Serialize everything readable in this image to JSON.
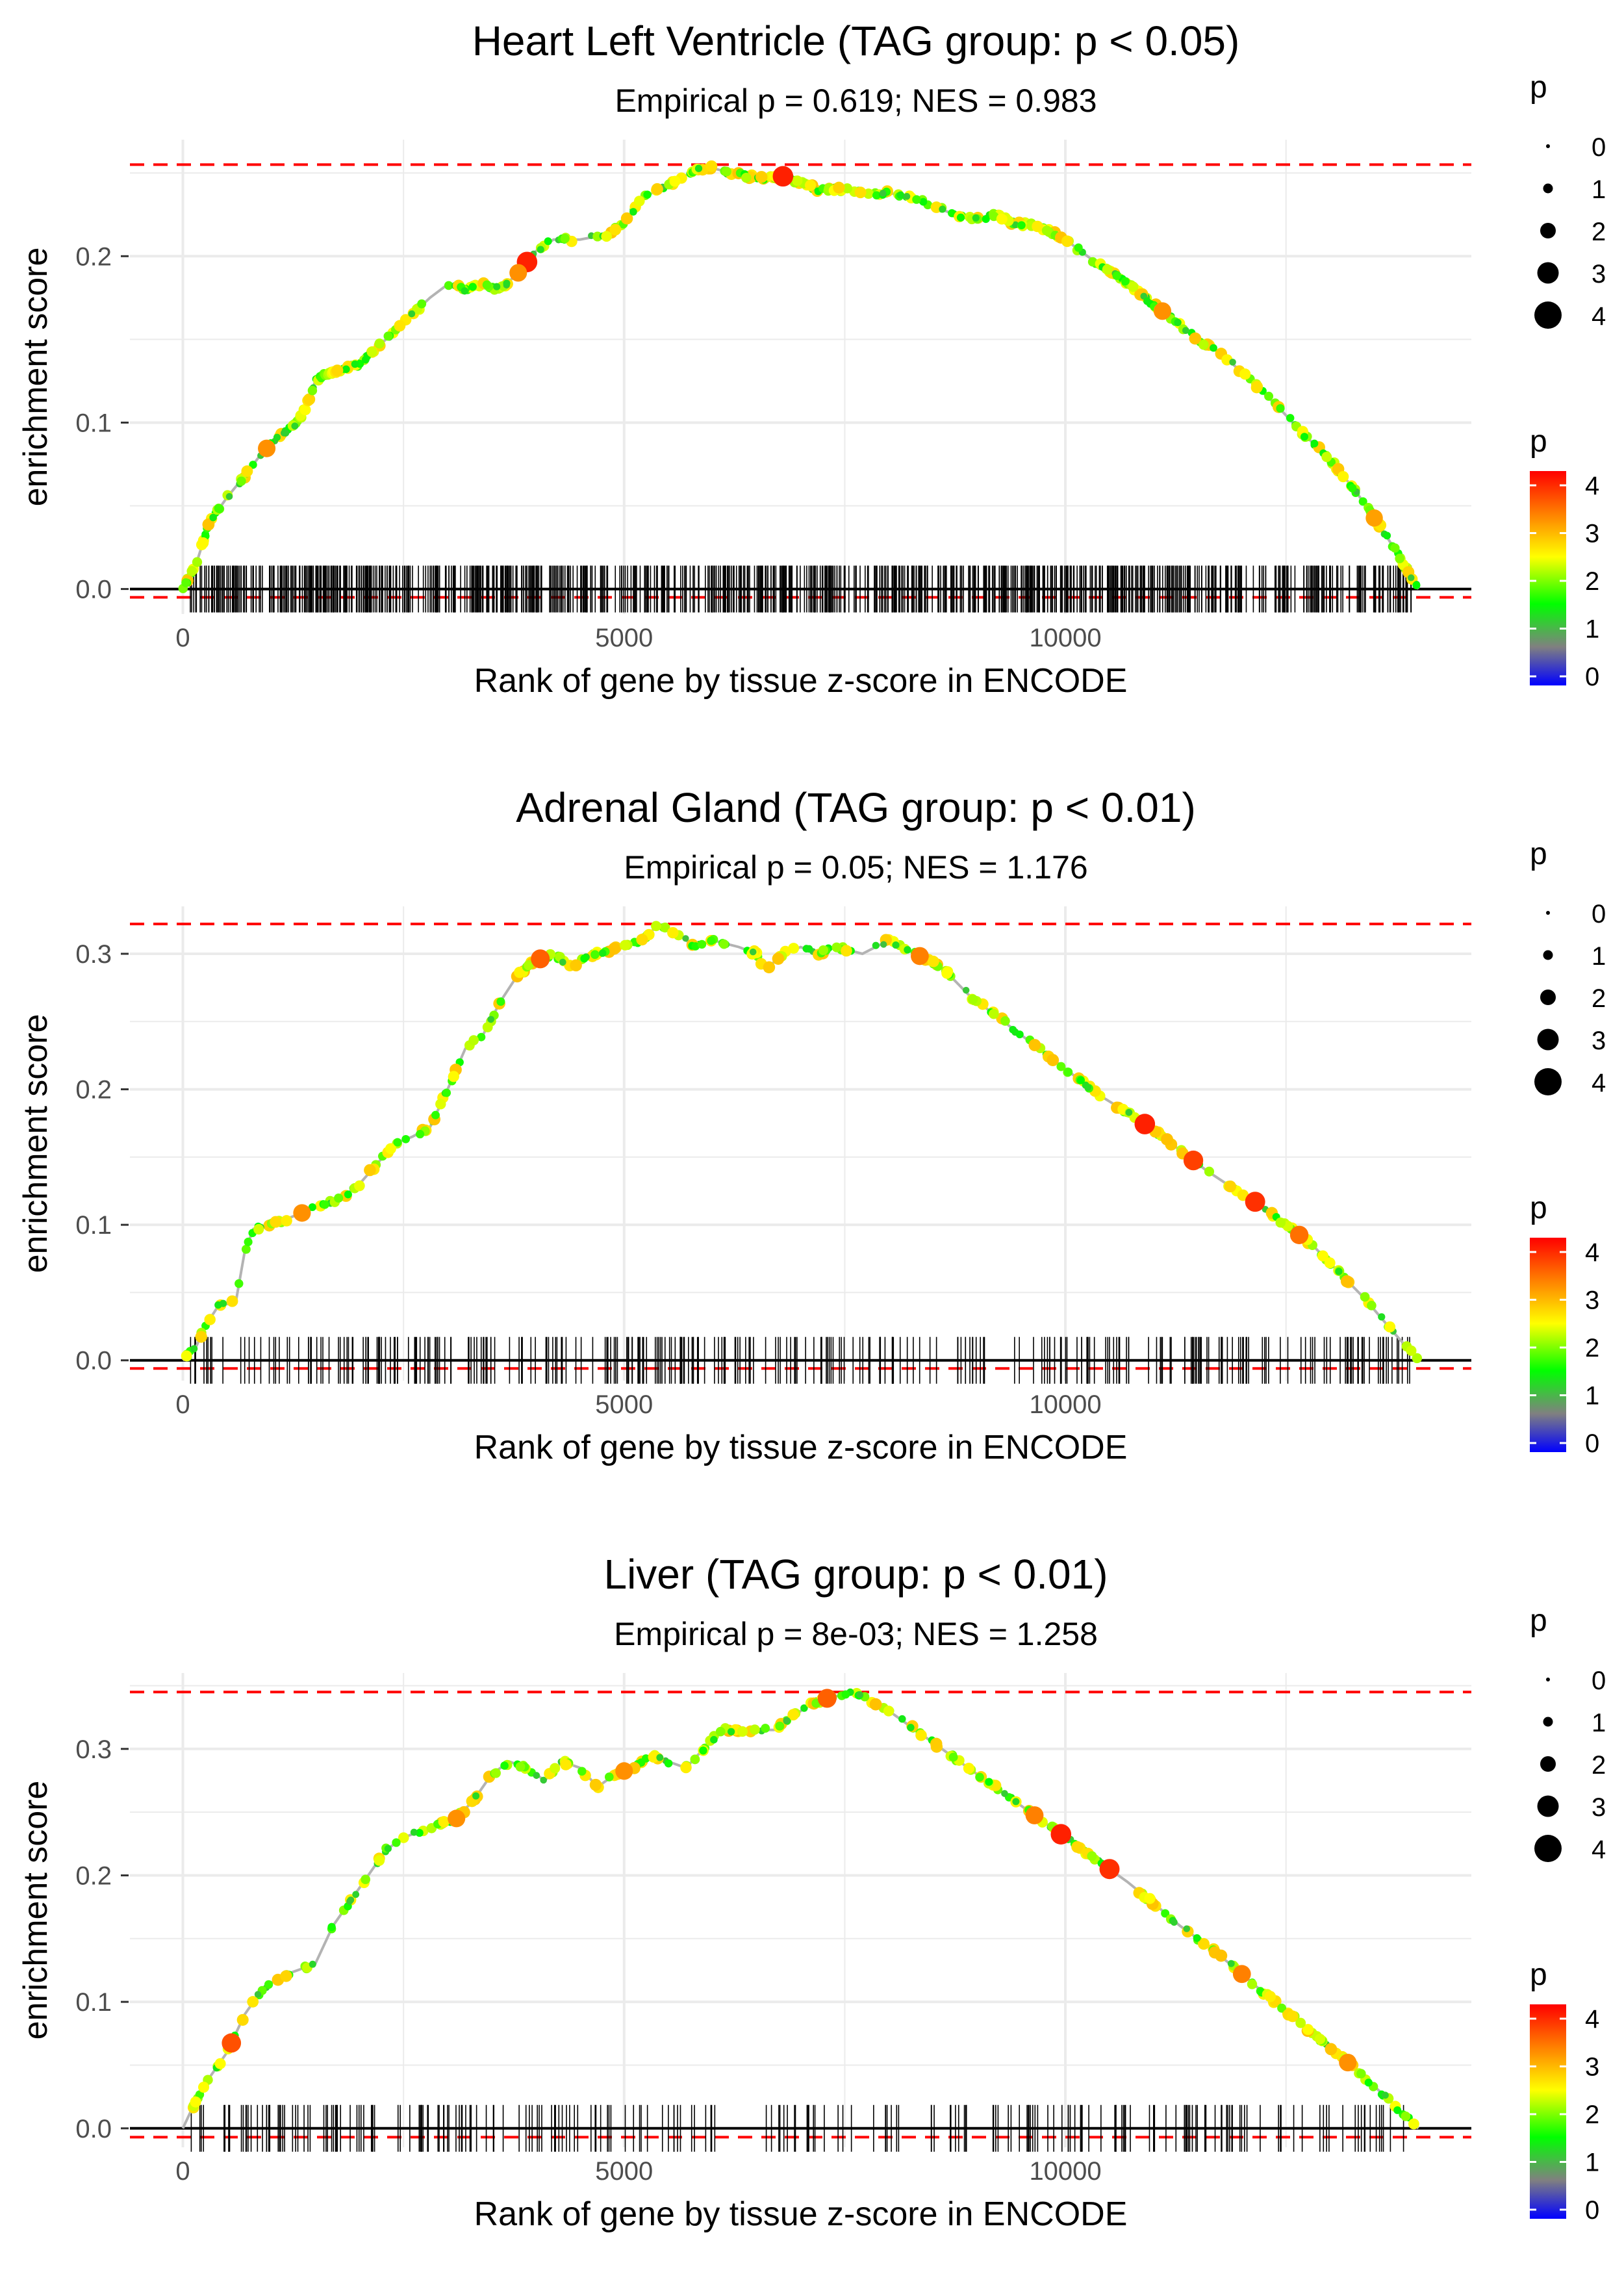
{
  "chart_data": [
    {
      "type": "line",
      "title": "Heart Left Ventricle (TAG group: p < 0.05)",
      "subtitle": "Empirical p = 0.619; NES = 0.983",
      "xlabel": "Rank of gene by tissue z-score in ENCODE",
      "ylabel": "enrichment score",
      "xlim": [
        -600,
        14600
      ],
      "ylim": [
        -0.015,
        0.27
      ],
      "x_ticks": [
        0,
        5000,
        10000
      ],
      "x_tick_labels": [
        "0",
        "5000",
        "10000"
      ],
      "y_ticks": [
        0.0,
        0.1,
        0.2
      ],
      "y_tick_labels": [
        "0.0",
        "0.1",
        "0.2"
      ],
      "max_es": 0.255,
      "min_es": -0.005,
      "n_genes": 14000,
      "grid": true,
      "curve": [
        [
          0,
          0
        ],
        [
          150,
          0.015
        ],
        [
          300,
          0.04
        ],
        [
          500,
          0.055
        ],
        [
          700,
          0.068
        ],
        [
          900,
          0.082
        ],
        [
          1100,
          0.092
        ],
        [
          1300,
          0.1
        ],
        [
          1400,
          0.11
        ],
        [
          1500,
          0.125
        ],
        [
          1650,
          0.13
        ],
        [
          1800,
          0.132
        ],
        [
          2000,
          0.135
        ],
        [
          2200,
          0.145
        ],
        [
          2400,
          0.155
        ],
        [
          2600,
          0.165
        ],
        [
          2800,
          0.175
        ],
        [
          3000,
          0.183
        ],
        [
          3200,
          0.18
        ],
        [
          3400,
          0.183
        ],
        [
          3600,
          0.18
        ],
        [
          3800,
          0.19
        ],
        [
          4000,
          0.203
        ],
        [
          4200,
          0.21
        ],
        [
          4500,
          0.21
        ],
        [
          4800,
          0.213
        ],
        [
          5000,
          0.22
        ],
        [
          5200,
          0.235
        ],
        [
          5400,
          0.24
        ],
        [
          5600,
          0.245
        ],
        [
          5800,
          0.252
        ],
        [
          6000,
          0.253
        ],
        [
          6200,
          0.25
        ],
        [
          6400,
          0.248
        ],
        [
          6600,
          0.247
        ],
        [
          6800,
          0.248
        ],
        [
          7000,
          0.244
        ],
        [
          7200,
          0.24
        ],
        [
          7500,
          0.24
        ],
        [
          7800,
          0.237
        ],
        [
          8000,
          0.238
        ],
        [
          8300,
          0.235
        ],
        [
          8500,
          0.23
        ],
        [
          8800,
          0.224
        ],
        [
          9000,
          0.222
        ],
        [
          9200,
          0.225
        ],
        [
          9400,
          0.22
        ],
        [
          9700,
          0.218
        ],
        [
          10000,
          0.21
        ],
        [
          10300,
          0.198
        ],
        [
          10600,
          0.188
        ],
        [
          10900,
          0.175
        ],
        [
          11200,
          0.163
        ],
        [
          11500,
          0.15
        ],
        [
          11800,
          0.14
        ],
        [
          12100,
          0.125
        ],
        [
          12400,
          0.11
        ],
        [
          12700,
          0.093
        ],
        [
          13000,
          0.078
        ],
        [
          13300,
          0.058
        ],
        [
          13600,
          0.035
        ],
        [
          13800,
          0.018
        ],
        [
          14000,
          0
        ]
      ],
      "highlight_points": [
        {
          "x": 950,
          "p": 3.3
        },
        {
          "x": 3900,
          "p": 4
        },
        {
          "x": 3800,
          "p": 3.3
        },
        {
          "x": 6800,
          "p": 4
        },
        {
          "x": 11100,
          "p": 3.3
        },
        {
          "x": 13500,
          "p": 3.2
        }
      ],
      "legend_size": {
        "title": "p",
        "labels": [
          "0",
          "1",
          "2",
          "3",
          "4"
        ]
      },
      "legend_color": {
        "title": "p",
        "labels": [
          "4",
          "3",
          "2",
          "1",
          "0"
        ]
      }
    },
    {
      "type": "line",
      "title": "Adrenal Gland (TAG group: p < 0.01)",
      "subtitle": "Empirical p = 0.05; NES = 1.176",
      "xlabel": "Rank of gene by tissue z-score in ENCODE",
      "ylabel": "enrichment score",
      "xlim": [
        -600,
        14600
      ],
      "ylim": [
        -0.015,
        0.335
      ],
      "x_ticks": [
        0,
        5000,
        10000
      ],
      "x_tick_labels": [
        "0",
        "5000",
        "10000"
      ],
      "y_ticks": [
        0.0,
        0.1,
        0.2,
        0.3
      ],
      "y_tick_labels": [
        "0.0",
        "0.1",
        "0.2",
        "0.3"
      ],
      "max_es": 0.322,
      "min_es": -0.006,
      "n_genes": 14000,
      "grid": true,
      "curve": [
        [
          0,
          0
        ],
        [
          150,
          0.01
        ],
        [
          250,
          0.025
        ],
        [
          400,
          0.04
        ],
        [
          600,
          0.043
        ],
        [
          700,
          0.08
        ],
        [
          800,
          0.097
        ],
        [
          1000,
          0.1
        ],
        [
          1200,
          0.105
        ],
        [
          1400,
          0.11
        ],
        [
          1600,
          0.115
        ],
        [
          1800,
          0.12
        ],
        [
          2000,
          0.13
        ],
        [
          2200,
          0.145
        ],
        [
          2400,
          0.16
        ],
        [
          2600,
          0.165
        ],
        [
          2800,
          0.172
        ],
        [
          3000,
          0.2
        ],
        [
          3200,
          0.23
        ],
        [
          3400,
          0.24
        ],
        [
          3600,
          0.265
        ],
        [
          3800,
          0.285
        ],
        [
          4000,
          0.295
        ],
        [
          4200,
          0.3
        ],
        [
          4400,
          0.29
        ],
        [
          4600,
          0.298
        ],
        [
          4800,
          0.302
        ],
        [
          5000,
          0.305
        ],
        [
          5200,
          0.31
        ],
        [
          5400,
          0.322
        ],
        [
          5600,
          0.315
        ],
        [
          5800,
          0.305
        ],
        [
          6000,
          0.31
        ],
        [
          6300,
          0.305
        ],
        [
          6500,
          0.3
        ],
        [
          6600,
          0.288
        ],
        [
          6800,
          0.3
        ],
        [
          7000,
          0.305
        ],
        [
          7200,
          0.3
        ],
        [
          7400,
          0.305
        ],
        [
          7700,
          0.3
        ],
        [
          8000,
          0.31
        ],
        [
          8300,
          0.3
        ],
        [
          8600,
          0.29
        ],
        [
          8900,
          0.27
        ],
        [
          9200,
          0.255
        ],
        [
          9500,
          0.24
        ],
        [
          9800,
          0.225
        ],
        [
          10100,
          0.21
        ],
        [
          10400,
          0.195
        ],
        [
          10700,
          0.183
        ],
        [
          11000,
          0.17
        ],
        [
          11300,
          0.155
        ],
        [
          11600,
          0.14
        ],
        [
          11900,
          0.127
        ],
        [
          12200,
          0.115
        ],
        [
          12500,
          0.1
        ],
        [
          12800,
          0.085
        ],
        [
          13100,
          0.065
        ],
        [
          13400,
          0.045
        ],
        [
          13700,
          0.022
        ],
        [
          14000,
          0
        ]
      ],
      "highlight_points": [
        {
          "x": 1350,
          "p": 3.3
        },
        {
          "x": 4050,
          "p": 3.6
        },
        {
          "x": 8350,
          "p": 3.4
        },
        {
          "x": 10900,
          "p": 4
        },
        {
          "x": 11450,
          "p": 3.8
        },
        {
          "x": 12150,
          "p": 3.9
        },
        {
          "x": 12650,
          "p": 3.5
        }
      ],
      "legend_size": {
        "title": "p",
        "labels": [
          "0",
          "1",
          "2",
          "3",
          "4"
        ]
      },
      "legend_color": {
        "title": "p",
        "labels": [
          "4",
          "3",
          "2",
          "1",
          "0"
        ]
      }
    },
    {
      "type": "line",
      "title": "Liver (TAG group: p < 0.01)",
      "subtitle": "Empirical p = 8e-03; NES = 1.258",
      "xlabel": "Rank of gene by tissue z-score in ENCODE",
      "ylabel": "enrichment score",
      "xlim": [
        -600,
        14600
      ],
      "ylim": [
        -0.015,
        0.36
      ],
      "x_ticks": [
        0,
        5000,
        10000
      ],
      "x_tick_labels": [
        "0",
        "5000",
        "10000"
      ],
      "y_ticks": [
        0.0,
        0.1,
        0.2,
        0.3
      ],
      "y_tick_labels": [
        "0.0",
        "0.1",
        "0.2",
        "0.3"
      ],
      "max_es": 0.345,
      "min_es": -0.007,
      "n_genes": 14000,
      "grid": true,
      "curve": [
        [
          0,
          0
        ],
        [
          100,
          0.015
        ],
        [
          300,
          0.04
        ],
        [
          500,
          0.06
        ],
        [
          700,
          0.09
        ],
        [
          900,
          0.11
        ],
        [
          1100,
          0.12
        ],
        [
          1300,
          0.125
        ],
        [
          1500,
          0.13
        ],
        [
          1700,
          0.16
        ],
        [
          1900,
          0.18
        ],
        [
          2100,
          0.2
        ],
        [
          2300,
          0.22
        ],
        [
          2500,
          0.23
        ],
        [
          2700,
          0.235
        ],
        [
          2900,
          0.24
        ],
        [
          3100,
          0.245
        ],
        [
          3300,
          0.26
        ],
        [
          3500,
          0.28
        ],
        [
          3700,
          0.29
        ],
        [
          3900,
          0.285
        ],
        [
          4100,
          0.275
        ],
        [
          4300,
          0.29
        ],
        [
          4500,
          0.285
        ],
        [
          4700,
          0.27
        ],
        [
          4900,
          0.28
        ],
        [
          5100,
          0.285
        ],
        [
          5300,
          0.295
        ],
        [
          5500,
          0.29
        ],
        [
          5700,
          0.285
        ],
        [
          5900,
          0.3
        ],
        [
          6100,
          0.315
        ],
        [
          6300,
          0.315
        ],
        [
          6500,
          0.315
        ],
        [
          6700,
          0.315
        ],
        [
          6900,
          0.325
        ],
        [
          7100,
          0.335
        ],
        [
          7300,
          0.34
        ],
        [
          7600,
          0.345
        ],
        [
          7700,
          0.342
        ],
        [
          8000,
          0.33
        ],
        [
          8300,
          0.315
        ],
        [
          8600,
          0.3
        ],
        [
          8900,
          0.285
        ],
        [
          9200,
          0.27
        ],
        [
          9500,
          0.255
        ],
        [
          9800,
          0.24
        ],
        [
          10100,
          0.225
        ],
        [
          10400,
          0.21
        ],
        [
          10700,
          0.195
        ],
        [
          11000,
          0.178
        ],
        [
          11300,
          0.16
        ],
        [
          11600,
          0.145
        ],
        [
          11900,
          0.128
        ],
        [
          12200,
          0.11
        ],
        [
          12500,
          0.093
        ],
        [
          12800,
          0.075
        ],
        [
          13100,
          0.058
        ],
        [
          13400,
          0.04
        ],
        [
          13700,
          0.02
        ],
        [
          14000,
          0
        ]
      ],
      "highlight_points": [
        {
          "x": 550,
          "p": 3.7
        },
        {
          "x": 3100,
          "p": 3.3
        },
        {
          "x": 5000,
          "p": 3.3
        },
        {
          "x": 7300,
          "p": 3.6
        },
        {
          "x": 9950,
          "p": 4
        },
        {
          "x": 10500,
          "p": 3.9
        },
        {
          "x": 9650,
          "p": 3.4
        },
        {
          "x": 12000,
          "p": 3.4
        },
        {
          "x": 13200,
          "p": 3.3
        }
      ],
      "legend_size": {
        "title": "p",
        "labels": [
          "0",
          "1",
          "2",
          "3",
          "4"
        ]
      },
      "legend_color": {
        "title": "p",
        "labels": [
          "4",
          "3",
          "2",
          "1",
          "0"
        ]
      }
    }
  ],
  "colors": {
    "grid": "#ebebeb",
    "dashed_line": "#ff0000",
    "curve_line": "#b3b3b3",
    "zero_line": "#000000",
    "gradient_stops": [
      "#ff0000",
      "#ff8000",
      "#ffff00",
      "#00ff00",
      "#808080",
      "#0000ff"
    ]
  }
}
